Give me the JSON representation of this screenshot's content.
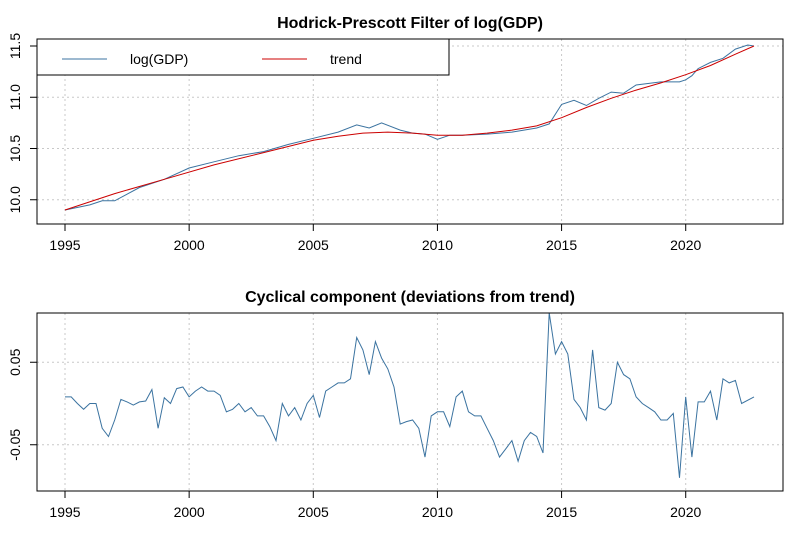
{
  "chart_data": [
    {
      "type": "line",
      "title": "Hodrick-Prescott Filter of log(GDP)",
      "xlim": [
        1995,
        2022.75
      ],
      "ylim": [
        9.9,
        11.5
      ],
      "xticks": [
        1995,
        2000,
        2005,
        2010,
        2015,
        2020
      ],
      "yticks": [
        10.0,
        10.5,
        11.0,
        11.5
      ],
      "ytick_labels": [
        "10.0",
        "10.5",
        "11.0",
        "11.5"
      ],
      "grid": true,
      "legend": {
        "position": "top-left",
        "entries": [
          "log(GDP)",
          "trend"
        ]
      },
      "colors": {
        "log(GDP)": "#3b73a0",
        "trend": "#cc0000"
      },
      "series": [
        {
          "name": "log(GDP)",
          "points": [
            [
              1995,
              9.9
            ],
            [
              1996,
              9.95
            ],
            [
              1996.5,
              9.99
            ],
            [
              1997,
              9.99
            ],
            [
              1998,
              10.12
            ],
            [
              1999,
              10.2
            ],
            [
              2000,
              10.31
            ],
            [
              2001,
              10.37
            ],
            [
              2002,
              10.43
            ],
            [
              2003,
              10.47
            ],
            [
              2004,
              10.54
            ],
            [
              2005,
              10.6
            ],
            [
              2006,
              10.66
            ],
            [
              2006.75,
              10.73
            ],
            [
              2007.25,
              10.7
            ],
            [
              2007.75,
              10.75
            ],
            [
              2008.5,
              10.68
            ],
            [
              2009,
              10.65
            ],
            [
              2009.5,
              10.64
            ],
            [
              2010,
              10.59
            ],
            [
              2010.5,
              10.63
            ],
            [
              2011,
              10.63
            ],
            [
              2012,
              10.64
            ],
            [
              2013,
              10.66
            ],
            [
              2014,
              10.7
            ],
            [
              2014.5,
              10.74
            ],
            [
              2015,
              10.93
            ],
            [
              2015.5,
              10.97
            ],
            [
              2016,
              10.92
            ],
            [
              2016.5,
              10.99
            ],
            [
              2017,
              11.05
            ],
            [
              2017.5,
              11.04
            ],
            [
              2018,
              11.12
            ],
            [
              2019,
              11.15
            ],
            [
              2019.75,
              11.15
            ],
            [
              2020,
              11.17
            ],
            [
              2020.25,
              11.21
            ],
            [
              2020.5,
              11.28
            ],
            [
              2021,
              11.34
            ],
            [
              2021.5,
              11.38
            ],
            [
              2022,
              11.47
            ],
            [
              2022.5,
              11.51
            ],
            [
              2022.75,
              11.5
            ]
          ]
        },
        {
          "name": "trend",
          "points": [
            [
              1995,
              9.9
            ],
            [
              1997,
              10.06
            ],
            [
              1999,
              10.2
            ],
            [
              2001,
              10.34
            ],
            [
              2003,
              10.46
            ],
            [
              2005,
              10.58
            ],
            [
              2006,
              10.62
            ],
            [
              2007,
              10.65
            ],
            [
              2008,
              10.66
            ],
            [
              2009,
              10.65
            ],
            [
              2010,
              10.63
            ],
            [
              2011,
              10.63
            ],
            [
              2012,
              10.65
            ],
            [
              2013,
              10.68
            ],
            [
              2014,
              10.72
            ],
            [
              2015,
              10.8
            ],
            [
              2016,
              10.9
            ],
            [
              2017,
              10.99
            ],
            [
              2018,
              11.07
            ],
            [
              2019,
              11.14
            ],
            [
              2020,
              11.22
            ],
            [
              2021,
              11.31
            ],
            [
              2022,
              11.42
            ],
            [
              2022.75,
              11.5
            ]
          ]
        }
      ]
    },
    {
      "type": "line",
      "title": "Cyclical component (deviations from trend)",
      "xlim": [
        1995,
        2022.75
      ],
      "ylim": [
        -0.1,
        0.1
      ],
      "xticks": [
        1995,
        2000,
        2005,
        2010,
        2015,
        2020
      ],
      "yticks": [
        -0.05,
        0.05
      ],
      "ytick_labels": [
        "-0.05",
        "0.05"
      ],
      "grid": true,
      "colors": {
        "cycle": "#3b73a0"
      },
      "series": [
        {
          "points": [
            [
              1995,
              0.008
            ],
            [
              1995.25,
              0.008
            ],
            [
              1995.5,
              0.0
            ],
            [
              1995.75,
              -0.007
            ],
            [
              1996,
              0.0
            ],
            [
              1996.25,
              0.0
            ],
            [
              1996.5,
              -0.03
            ],
            [
              1996.75,
              -0.04
            ],
            [
              1997,
              -0.02
            ],
            [
              1997.25,
              0.005
            ],
            [
              1997.5,
              0.002
            ],
            [
              1997.75,
              -0.002
            ],
            [
              1998,
              0.002
            ],
            [
              1998.25,
              0.003
            ],
            [
              1998.5,
              0.017
            ],
            [
              1998.75,
              -0.03
            ],
            [
              1999,
              0.007
            ],
            [
              1999.25,
              0.0
            ],
            [
              1999.5,
              0.018
            ],
            [
              1999.75,
              0.02
            ],
            [
              2000,
              0.008
            ],
            [
              2000.25,
              0.015
            ],
            [
              2000.5,
              0.02
            ],
            [
              2000.75,
              0.015
            ],
            [
              2001,
              0.015
            ],
            [
              2001.25,
              0.01
            ],
            [
              2001.5,
              -0.01
            ],
            [
              2001.75,
              -0.007
            ],
            [
              2002,
              0.0
            ],
            [
              2002.25,
              -0.01
            ],
            [
              2002.5,
              -0.005
            ],
            [
              2002.75,
              -0.015
            ],
            [
              2003,
              -0.015
            ],
            [
              2003.25,
              -0.028
            ],
            [
              2003.5,
              -0.045
            ],
            [
              2003.75,
              0.0
            ],
            [
              2004,
              -0.015
            ],
            [
              2004.25,
              -0.005
            ],
            [
              2004.5,
              -0.02
            ],
            [
              2004.75,
              0.0
            ],
            [
              2005,
              0.01
            ],
            [
              2005.25,
              -0.017
            ],
            [
              2005.5,
              0.015
            ],
            [
              2005.75,
              0.02
            ],
            [
              2006,
              0.025
            ],
            [
              2006.25,
              0.025
            ],
            [
              2006.5,
              0.03
            ],
            [
              2006.75,
              0.08
            ],
            [
              2007,
              0.065
            ],
            [
              2007.25,
              0.035
            ],
            [
              2007.5,
              0.075
            ],
            [
              2007.75,
              0.055
            ],
            [
              2008,
              0.042
            ],
            [
              2008.25,
              0.02
            ],
            [
              2008.5,
              -0.025
            ],
            [
              2008.75,
              -0.022
            ],
            [
              2009,
              -0.02
            ],
            [
              2009.25,
              -0.03
            ],
            [
              2009.5,
              -0.065
            ],
            [
              2009.75,
              -0.015
            ],
            [
              2010,
              -0.01
            ],
            [
              2010.25,
              -0.01
            ],
            [
              2010.5,
              -0.028
            ],
            [
              2010.75,
              0.008
            ],
            [
              2011,
              0.015
            ],
            [
              2011.25,
              -0.01
            ],
            [
              2011.5,
              -0.015
            ],
            [
              2011.75,
              -0.015
            ],
            [
              2012,
              -0.03
            ],
            [
              2012.25,
              -0.045
            ],
            [
              2012.5,
              -0.065
            ],
            [
              2012.75,
              -0.055
            ],
            [
              2013,
              -0.045
            ],
            [
              2013.25,
              -0.07
            ],
            [
              2013.5,
              -0.045
            ],
            [
              2013.75,
              -0.035
            ],
            [
              2014,
              -0.04
            ],
            [
              2014.25,
              -0.06
            ],
            [
              2014.5,
              0.11
            ],
            [
              2014.75,
              0.06
            ],
            [
              2015,
              0.075
            ],
            [
              2015.25,
              0.06
            ],
            [
              2015.5,
              0.005
            ],
            [
              2015.75,
              -0.005
            ],
            [
              2016,
              -0.02
            ],
            [
              2016.25,
              0.065
            ],
            [
              2016.5,
              -0.005
            ],
            [
              2016.75,
              -0.008
            ],
            [
              2017,
              0.0
            ],
            [
              2017.25,
              0.05
            ],
            [
              2017.5,
              0.035
            ],
            [
              2017.75,
              0.03
            ],
            [
              2018,
              0.008
            ],
            [
              2018.25,
              0.0
            ],
            [
              2018.5,
              -0.005
            ],
            [
              2018.75,
              -0.01
            ],
            [
              2019,
              -0.02
            ],
            [
              2019.25,
              -0.02
            ],
            [
              2019.5,
              -0.012
            ],
            [
              2019.75,
              -0.09
            ],
            [
              2020,
              0.008
            ],
            [
              2020.25,
              -0.065
            ],
            [
              2020.5,
              0.002
            ],
            [
              2020.75,
              0.002
            ],
            [
              2021,
              0.015
            ],
            [
              2021.25,
              -0.02
            ],
            [
              2021.5,
              0.03
            ],
            [
              2021.75,
              0.025
            ],
            [
              2022,
              0.028
            ],
            [
              2022.25,
              0.0
            ],
            [
              2022.75,
              0.008
            ]
          ]
        }
      ]
    }
  ]
}
